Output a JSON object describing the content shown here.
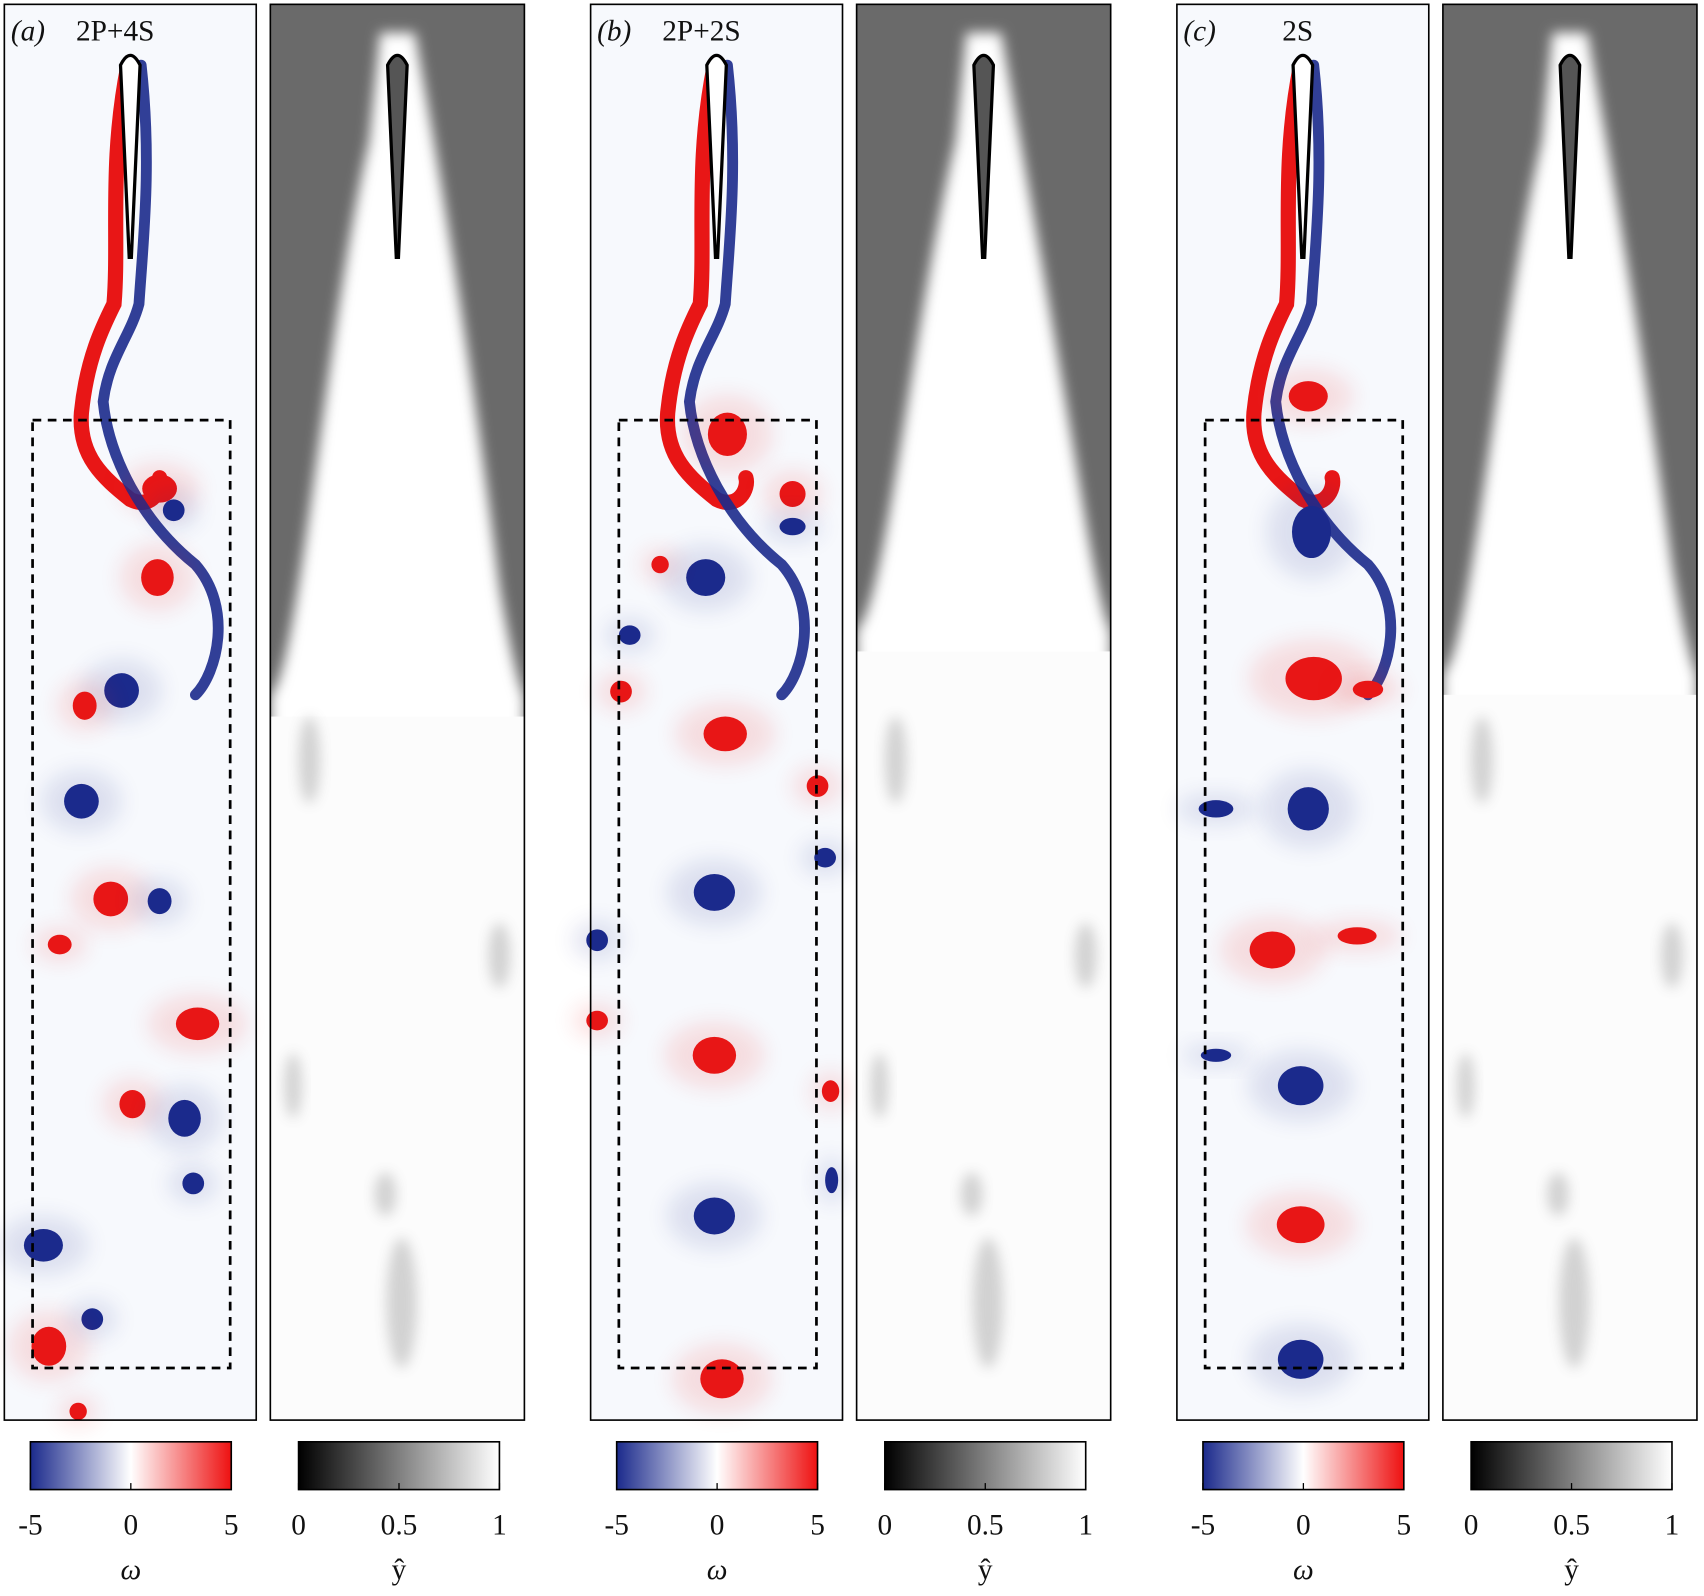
{
  "groups": [
    {
      "label": "(a)",
      "pattern": "2P+4S",
      "vorticity_colorbar": {
        "symbol": "ω",
        "lim": [
          -5,
          5
        ],
        "ticks": [
          -5,
          0,
          5
        ]
      },
      "yhat_colorbar": {
        "symbol": "ŷ",
        "lim": [
          0,
          1
        ],
        "ticks": [
          0,
          0.5,
          1
        ]
      }
    },
    {
      "label": "(b)",
      "pattern": "2P+2S",
      "vorticity_colorbar": {
        "symbol": "ω",
        "lim": [
          -5,
          5
        ],
        "ticks": [
          -5,
          0,
          5
        ]
      },
      "yhat_colorbar": {
        "symbol": "ŷ",
        "lim": [
          0,
          1
        ],
        "ticks": [
          0,
          0.5,
          1
        ]
      }
    },
    {
      "label": "(c)",
      "pattern": "2S",
      "vorticity_colorbar": {
        "symbol": "ω",
        "lim": [
          -5,
          5
        ],
        "ticks": [
          -5,
          0,
          5
        ]
      },
      "yhat_colorbar": {
        "symbol": "ŷ",
        "lim": [
          0,
          1
        ],
        "ticks": [
          0,
          0.5,
          1
        ]
      }
    }
  ]
}
